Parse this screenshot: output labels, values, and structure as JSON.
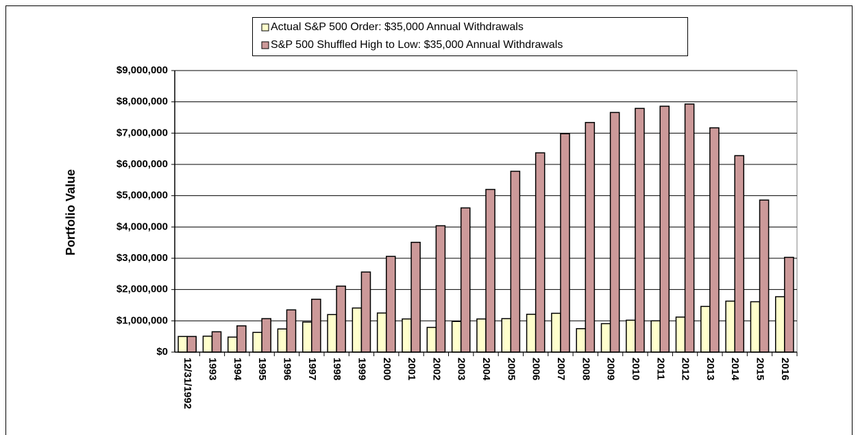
{
  "chart_data": {
    "type": "bar",
    "y_label": "Portfolio Value",
    "categories": [
      "12/31/1992",
      "1993",
      "1994",
      "1995",
      "1996",
      "1997",
      "1998",
      "1999",
      "2000",
      "2001",
      "2002",
      "2003",
      "2004",
      "2005",
      "2006",
      "2007",
      "2008",
      "2009",
      "2010",
      "2011",
      "2012",
      "2013",
      "2014",
      "2015",
      "2016"
    ],
    "series": [
      {
        "name": "Actual S&P 500 Order: $35,000 Annual  Withdrawals",
        "color": "#ffffcc",
        "values": [
          500000,
          510000,
          480000,
          630000,
          740000,
          960000,
          1200000,
          1410000,
          1250000,
          1060000,
          790000,
          980000,
          1060000,
          1070000,
          1210000,
          1240000,
          750000,
          910000,
          1020000,
          1000000,
          1120000,
          1460000,
          1630000,
          1610000,
          1770000
        ]
      },
      {
        "name": "S&P 500 Shuffled High to Low: $35,000 Annual Withdrawals",
        "color": "#cc9999",
        "values": [
          500000,
          650000,
          840000,
          1070000,
          1350000,
          1690000,
          2110000,
          2560000,
          3060000,
          3510000,
          4040000,
          4610000,
          5200000,
          5780000,
          6370000,
          6980000,
          7340000,
          7660000,
          7790000,
          7860000,
          7930000,
          7170000,
          6280000,
          4860000,
          3030000
        ]
      }
    ],
    "ylim": [
      0,
      9000000
    ],
    "yticks": [
      {
        "value": 0,
        "label": "$0"
      },
      {
        "value": 1000000,
        "label": "$1,000,000"
      },
      {
        "value": 2000000,
        "label": "$2,000,000"
      },
      {
        "value": 3000000,
        "label": "$3,000,000"
      },
      {
        "value": 4000000,
        "label": "$4,000,000"
      },
      {
        "value": 5000000,
        "label": "$5,000,000"
      },
      {
        "value": 6000000,
        "label": "$6,000,000"
      },
      {
        "value": 7000000,
        "label": "$7,000,000"
      },
      {
        "value": 8000000,
        "label": "$8,000,000"
      },
      {
        "value": 9000000,
        "label": "$9,000,000"
      }
    ],
    "grid": true
  }
}
